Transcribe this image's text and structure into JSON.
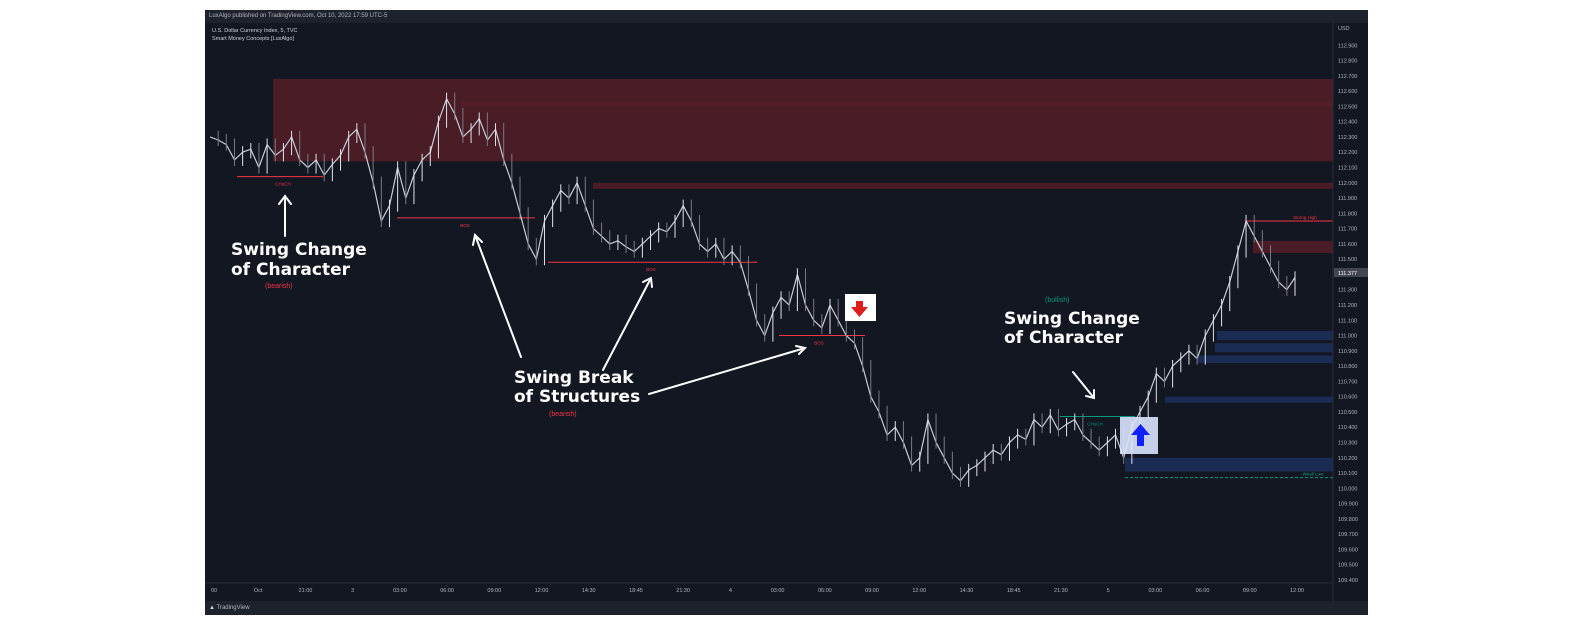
{
  "header": {
    "published": "LuxAlgo published on TradingView.com, Oct 10, 2022 17:59 UTC-5"
  },
  "legend": {
    "symbol": "U.S. Dollar Currency Index, 5, TVC",
    "indicator": "Smart Money Concepts [LuxAlgo]"
  },
  "footer": {
    "brand": "TradingView"
  },
  "colors": {
    "background": "#131722",
    "bear": "#f23645",
    "bull": "#089981",
    "bear_zone": "#5c1f28",
    "bull_zone": "#1e3366",
    "annotation": "#ffffff"
  },
  "annotations": {
    "choch_left_line1": "Swing Change",
    "choch_left_line2": "of Character",
    "choch_left_sub": "(bearish)",
    "bos_line1": "Swing Break",
    "bos_line2": "of Structures",
    "bos_sub": "(bearish)",
    "choch_right_line1": "Swing Change",
    "choch_right_line2": "of Character",
    "choch_right_sub": "(bullish)"
  },
  "chart_data": {
    "type": "line",
    "price_unit": "USD",
    "current_price": "111.377",
    "ylim": [
      109.4,
      113.0
    ],
    "y_ticks": [
      "112.900",
      "112.800",
      "112.700",
      "112.600",
      "112.500",
      "112.400",
      "112.300",
      "112.200",
      "112.100",
      "112.000",
      "111.900",
      "111.800",
      "111.700",
      "111.600",
      "111.500",
      "111.400",
      "111.300",
      "111.200",
      "111.100",
      "111.000",
      "110.900",
      "110.800",
      "110.700",
      "110.600",
      "110.500",
      "110.400",
      "110.300",
      "110.200",
      "110.100",
      "110.000",
      "109.900",
      "109.800",
      "109.700",
      "109.600",
      "109.500",
      "109.400"
    ],
    "x_ticks": [
      "00",
      "Oct",
      "21:00",
      "3",
      "03:00",
      "06:00",
      "09:00",
      "12:00",
      "14:30",
      "18:45",
      "21:30",
      "4",
      "03:00",
      "06:00",
      "09:00",
      "12:00",
      "14:30",
      "18:45",
      "21:30",
      "5",
      "03:00",
      "06:00",
      "09:00",
      "12:00"
    ],
    "series": [
      {
        "values": [
          112.3,
          112.28,
          112.25,
          112.15,
          112.2,
          112.22,
          112.1,
          112.25,
          112.18,
          112.22,
          112.3,
          112.15,
          112.1,
          112.15,
          112.05,
          112.12,
          112.18,
          112.3,
          112.35,
          112.2,
          112.0,
          111.75,
          111.85,
          112.1,
          111.9,
          112.05,
          112.15,
          112.2,
          112.4,
          112.55,
          112.45,
          112.3,
          112.35,
          112.42,
          112.28,
          112.35,
          112.15,
          112.0,
          111.8,
          111.6,
          111.5,
          111.75,
          111.85,
          111.95,
          111.9,
          112.0,
          111.85,
          111.7,
          111.65,
          111.6,
          111.62,
          111.58,
          111.55,
          111.6,
          111.65,
          111.7,
          111.68,
          111.75,
          111.85,
          111.75,
          111.6,
          111.55,
          111.6,
          111.5,
          111.55,
          111.48,
          111.3,
          111.1,
          111.0,
          111.15,
          111.25,
          111.2,
          111.4,
          111.2,
          111.1,
          111.05,
          111.2,
          111.1,
          111.0,
          110.95,
          110.8,
          110.6,
          110.5,
          110.35,
          110.4,
          110.3,
          110.15,
          110.2,
          110.45,
          110.3,
          110.2,
          110.1,
          110.05,
          110.12,
          110.15,
          110.2,
          110.25,
          110.22,
          110.3,
          110.35,
          110.32,
          110.45,
          110.4,
          110.48,
          110.38,
          110.42,
          110.45,
          110.35,
          110.3,
          110.25,
          110.3,
          110.35,
          110.2,
          110.4,
          110.5,
          110.6,
          110.75,
          110.7,
          110.8,
          110.85,
          110.9,
          110.85,
          111.0,
          111.1,
          111.2,
          111.35,
          111.55,
          111.75,
          111.65,
          111.55,
          111.45,
          111.35,
          111.3,
          111.38
        ]
      }
    ],
    "zones": [
      {
        "kind": "bearish-ob",
        "top": 112.68,
        "bottom": 112.14
      },
      {
        "kind": "bearish-ob",
        "top": 112.53,
        "bottom": 112.5
      },
      {
        "kind": "bearish-ob",
        "top": 112.0,
        "bottom": 111.96
      },
      {
        "kind": "bearish-ob",
        "top": 111.62,
        "bottom": 111.54
      },
      {
        "kind": "bullish-ob",
        "top": 111.03,
        "bottom": 110.97
      },
      {
        "kind": "bullish-ob",
        "top": 110.95,
        "bottom": 110.89
      },
      {
        "kind": "bullish-ob",
        "top": 110.87,
        "bottom": 110.82
      },
      {
        "kind": "bullish-ob",
        "top": 110.6,
        "bottom": 110.56
      },
      {
        "kind": "bullish-ob",
        "top": 110.2,
        "bottom": 110.11
      }
    ],
    "levels": [
      {
        "label": "CHoCH",
        "price": 112.04,
        "color": "bear"
      },
      {
        "label": "BOS",
        "price": 111.77,
        "color": "bear"
      },
      {
        "label": "BOS",
        "price": 111.48,
        "color": "bear"
      },
      {
        "label": "BOS",
        "price": 111.0,
        "color": "bear"
      },
      {
        "label": "CHoCH",
        "price": 110.47,
        "color": "bull"
      },
      {
        "label": "Strong High",
        "price": 111.75,
        "color": "bear"
      },
      {
        "label": "Weak Low",
        "price": 110.07,
        "color": "bull"
      }
    ]
  }
}
